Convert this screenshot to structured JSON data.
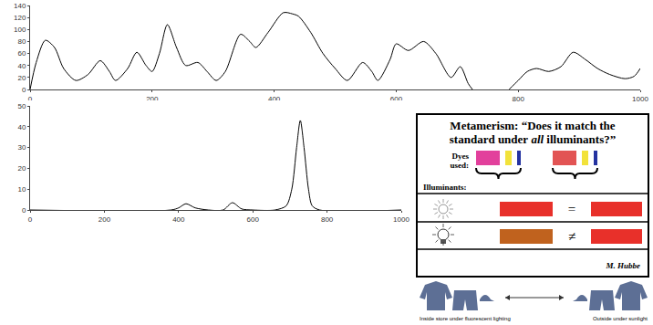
{
  "chart_data": [
    {
      "type": "line",
      "color": "#000000",
      "grid": false,
      "x": [
        0,
        10,
        25,
        40,
        55,
        75,
        95,
        115,
        130,
        140,
        160,
        175,
        190,
        200,
        212,
        225,
        240,
        255,
        275,
        290,
        305,
        320,
        345,
        360,
        370,
        390,
        415,
        430,
        440,
        460,
        480,
        500,
        520,
        545,
        560,
        570,
        590,
        600,
        620,
        645,
        665,
        690,
        705,
        718,
        725,
        740,
        760,
        785,
        800,
        815,
        830,
        850,
        870,
        890,
        910,
        930,
        950,
        975,
        990,
        1000
      ],
      "values": [
        0,
        45,
        82,
        70,
        35,
        15,
        25,
        48,
        30,
        15,
        35,
        62,
        40,
        30,
        60,
        108,
        70,
        40,
        45,
        30,
        15,
        30,
        92,
        80,
        70,
        95,
        128,
        126,
        122,
        95,
        60,
        35,
        15,
        45,
        30,
        15,
        50,
        76,
        65,
        80,
        60,
        20,
        38,
        10,
        0,
        null,
        null,
        0,
        15,
        30,
        35,
        30,
        38,
        62,
        50,
        35,
        25,
        18,
        22,
        35
      ],
      "xlim": [
        0,
        1000
      ],
      "xticks": [
        0,
        200,
        400,
        600,
        800,
        1000
      ],
      "ylim": [
        0,
        140
      ],
      "yticks": [
        0,
        20,
        40,
        60,
        80,
        100,
        120,
        140
      ]
    },
    {
      "type": "line",
      "color": "#000000",
      "grid": false,
      "x": [
        0,
        380,
        400,
        420,
        445,
        480,
        520,
        545,
        570,
        600,
        660,
        690,
        705,
        718,
        728,
        738,
        750,
        760,
        780,
        1000
      ],
      "values": [
        0,
        0,
        1,
        3,
        1,
        0,
        0,
        3.5,
        0.5,
        0,
        0,
        2,
        10,
        30,
        43,
        30,
        10,
        2,
        0,
        0
      ],
      "xlim": [
        0,
        1000
      ],
      "xticks": [
        0,
        200,
        400,
        600,
        800,
        1000
      ],
      "ylim": [
        0,
        50
      ],
      "yticks": [
        0,
        10,
        20,
        30,
        40,
        50
      ]
    }
  ],
  "diagram": {
    "title": "Metamerism: “Does it match the standard under all illuminants?”",
    "emphasis": "all",
    "dyes_label": "Dyes used:",
    "dyes": [
      {
        "colors": [
          "#e2409c",
          "#f2e23a",
          "#2432a0"
        ]
      },
      {
        "colors": [
          "#e25454",
          "#f2e23a",
          "#2432a0"
        ]
      }
    ],
    "illuminants_label": "Illuminants:",
    "rows": [
      {
        "left_color": "#e8302a",
        "symbol": "=",
        "right_color": "#e8302a"
      },
      {
        "left_color": "#c0621e",
        "symbol": "≠",
        "right_color": "#e8302a"
      }
    ],
    "credit": "M. Hubbe"
  },
  "photo": {
    "left_caption": "Inside store under fluorescent lighting",
    "right_caption": "Outside under sunlight"
  }
}
